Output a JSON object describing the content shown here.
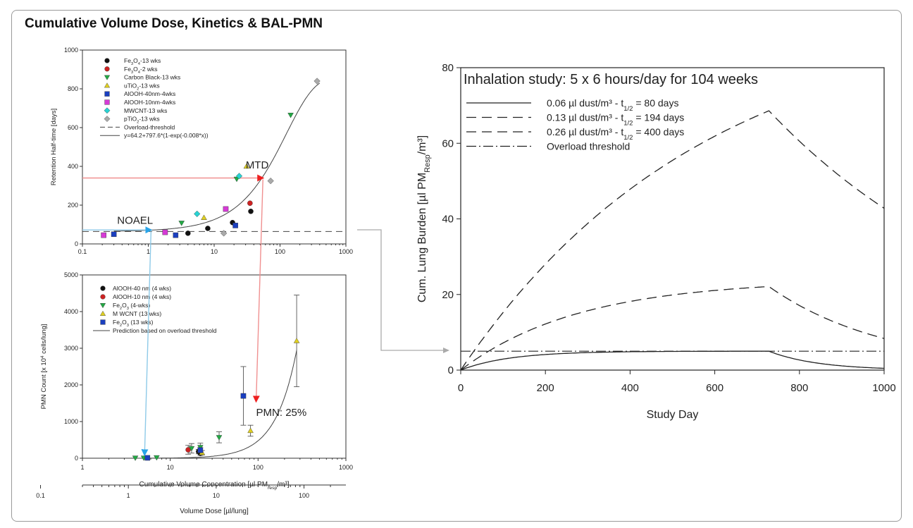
{
  "figure": {
    "title": "Cumulative Volume Dose,  Kinetics & BAL-PMN"
  },
  "chart_data": [
    {
      "type": "scatter",
      "id": "retention",
      "xscale": "log",
      "xlim": [
        0.1,
        1000
      ],
      "ylim": [
        0,
        1000
      ],
      "xticks": [
        {
          "v": 0.1,
          "label": "0.1"
        },
        {
          "v": 1,
          "label": "1"
        },
        {
          "v": 10,
          "label": "10"
        },
        {
          "v": 100,
          "label": "100"
        },
        {
          "v": 1000,
          "label": "1000"
        }
      ],
      "yticks": [
        0,
        200,
        400,
        600,
        800,
        1000
      ],
      "ylabel": "Retention Half-time [days]",
      "series": [
        {
          "name": "Fe3O4-13 wks",
          "marker": "circle",
          "color": "#111111",
          "points": [
            [
              4,
              55
            ],
            [
              8,
              80
            ],
            [
              19,
              110
            ],
            [
              36,
              168
            ]
          ]
        },
        {
          "name": "Fe3O4-2 wks",
          "marker": "circle",
          "color": "#cc2222",
          "points": [
            [
              35,
              210
            ]
          ]
        },
        {
          "name": "Carbon Black-13 wks",
          "marker": "tri-down",
          "color": "#22aa44",
          "points": [
            [
              3.2,
              108
            ],
            [
              22,
              335
            ],
            [
              145,
              665
            ]
          ]
        },
        {
          "name": "uTiO2-13 wks",
          "marker": "tri-up",
          "color": "#e0d020",
          "points": [
            [
              7,
              135
            ],
            [
              31,
              400
            ]
          ]
        },
        {
          "name": "AlOOH-40nm-4wks",
          "marker": "square",
          "color": "#1b3fbf",
          "points": [
            [
              0.3,
              50
            ],
            [
              2.6,
              45
            ],
            [
              21,
              95
            ]
          ]
        },
        {
          "name": "AlOOH-10nm-4wks",
          "marker": "square",
          "color": "#d63ad6",
          "points": [
            [
              0.21,
              45
            ],
            [
              1.8,
              60
            ],
            [
              15,
              180
            ]
          ]
        },
        {
          "name": "MWCNT-13 wks",
          "marker": "diamond",
          "color": "#27d3d3",
          "points": [
            [
              5.5,
              155
            ],
            [
              24,
              350
            ]
          ]
        },
        {
          "name": "pTiO2-13 wks",
          "marker": "diamond",
          "color": "#aaaaaa",
          "points": [
            [
              14,
              55
            ],
            [
              72,
              325
            ],
            [
              365,
              840
            ]
          ]
        }
      ],
      "lines": [
        {
          "name": "Overload-threshold",
          "style": "dashed",
          "y": 64
        },
        {
          "name": "y=64.2+797.6*(1-exp(-0.008*x))",
          "style": "solid",
          "a": 64.2,
          "b": 797.6,
          "k": 0.008
        }
      ],
      "annotations": [
        {
          "text": "MTD",
          "x": 45,
          "y": 390
        },
        {
          "text": "NOAEL",
          "x": 0.63,
          "y": 103
        }
      ],
      "arrows": [
        {
          "color": "#f09090",
          "from": [
            0.1,
            340
          ],
          "to": [
            55,
            340
          ]
        },
        {
          "color": "#8ecae8",
          "from": [
            0.1,
            72
          ],
          "to": [
            1.1,
            72
          ]
        }
      ]
    },
    {
      "type": "scatter",
      "id": "pmn",
      "xscale": "log",
      "xlim": [
        1,
        1000
      ],
      "ylim": [
        0,
        5000
      ],
      "xticks": [
        {
          "v": 1,
          "label": "1"
        },
        {
          "v": 10,
          "label": "10"
        },
        {
          "v": 100,
          "label": "100"
        },
        {
          "v": 1000,
          "label": "1000"
        }
      ],
      "yticks": [
        0,
        1000,
        2000,
        3000,
        4000,
        5000
      ],
      "xlabel": "Cumulative Volume Concentration [µl PM",
      "xlabel_sub": "resp",
      "xlabel_end": "/m³]",
      "ylabel": "PMN Count [x 10",
      "ylabel_sup": "4",
      "ylabel_end": " cells/lung]",
      "series": [
        {
          "name": "AlOOH-40 nm (4 wks)",
          "marker": "circle",
          "color": "#111111",
          "points": [
            [
              21,
              180,
              60
            ],
            [
              22,
              130,
              50
            ]
          ]
        },
        {
          "name": "AlOOH-10 nm (4 wks)",
          "marker": "circle",
          "color": "#cc2222",
          "points": [
            [
              16,
              230,
              120
            ]
          ]
        },
        {
          "name": "Fe2O3 (4-wks)",
          "marker": "tri-down",
          "color": "#22aa44",
          "points": [
            [
              4,
              10,
              0
            ],
            [
              5,
              10,
              0
            ],
            [
              7,
              20,
              0
            ],
            [
              17.5,
              270,
              130
            ],
            [
              22,
              300,
              110
            ],
            [
              36,
              570,
              150
            ]
          ]
        },
        {
          "name": "M WCNT (13 wks)",
          "marker": "tri-up",
          "color": "#e0d020",
          "points": [
            [
              23,
              150,
              60
            ],
            [
              82,
              750,
              150
            ],
            [
              275,
              3200,
              1250
            ]
          ]
        },
        {
          "name": "Fe2O3 (13 wks)",
          "marker": "square",
          "color": "#1b3fbf",
          "points": [
            [
              5.5,
              10,
              0
            ],
            [
              22,
              220,
              70
            ],
            [
              68,
              1700,
              800
            ]
          ]
        }
      ],
      "lines": [
        {
          "name": "Prediction based on overload threshold",
          "style": "solid"
        }
      ],
      "annotations": [
        {
          "text": "PMN:  25%",
          "x": 95,
          "y": 1150
        }
      ],
      "arrows": [
        {
          "color": "#f09090",
          "from": [
            55,
            3400
          ],
          "to": [
            95,
            1550
          ]
        },
        {
          "color": "#8ecae8",
          "from": [
            1.1,
            6000
          ],
          "to": [
            5.1,
            90
          ]
        }
      ],
      "secondary_axis": {
        "label": "Volume Dose [µl/lung]",
        "ticks": [
          {
            "v": 0.1,
            "label": "0.1"
          },
          {
            "v": 1,
            "label": "1"
          },
          {
            "v": 10,
            "label": "10"
          },
          {
            "v": 100,
            "label": "100"
          }
        ],
        "note": "aligned so that 0.3 µl/lung ≈ 1 µl PM/m³"
      }
    },
    {
      "type": "line",
      "id": "lung-burden",
      "title": "Inhalation study: 5 x 6 hours/day for 104 weeks",
      "xlabel": "Study Day",
      "ylabel": "Cum. Lung Burden [µl PM",
      "ylabel_sub": "Resp",
      "ylabel_end": "/m³]",
      "xlim": [
        0,
        1000
      ],
      "ylim": [
        0,
        80
      ],
      "xticks": [
        0,
        200,
        400,
        600,
        800,
        1000
      ],
      "yticks": [
        0,
        20,
        40,
        60,
        80
      ],
      "exposure_end_day": 728,
      "series": [
        {
          "name": "0.06 µl dust/m³ - t",
          "sub": "1/2",
          "rest": " = 80 days",
          "style": "solid",
          "peak": 5.0,
          "halflife": 80
        },
        {
          "name": "0.13 µl dust/m³ - t",
          "sub": "1/2",
          "rest": " = 194 days",
          "style": "dashed",
          "peak": 22.1,
          "halflife": 194
        },
        {
          "name": "0.26 µl dust/m³ - t",
          "sub": "1/2",
          "rest": " = 400 days",
          "style": "dashed",
          "peak": 68.6,
          "halflife": 400
        },
        {
          "name": "Overload threshold",
          "style": "dashdot",
          "y": 5
        }
      ]
    }
  ]
}
